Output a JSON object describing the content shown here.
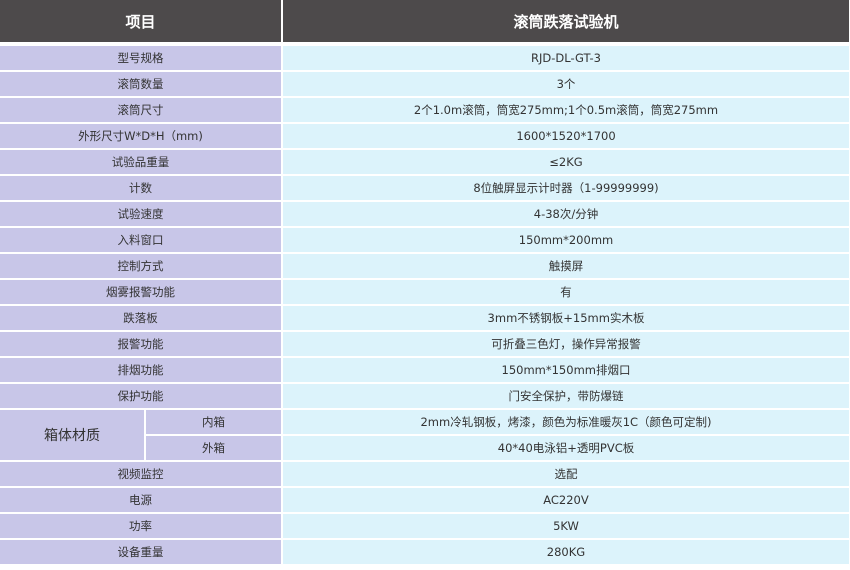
{
  "header": {
    "item": "项目",
    "product": "滚筒跌落试验机"
  },
  "rows": [
    {
      "label": "型号规格",
      "value": "RJD-DL-GT-3"
    },
    {
      "label": "滚筒数量",
      "value": "3个"
    },
    {
      "label": "滚筒尺寸",
      "value": "2个1.0m滚筒，筒宽275mm;1个0.5m滚筒，筒宽275mm"
    },
    {
      "label": "外形尺寸W*D*H（mm)",
      "value": "1600*1520*1700"
    },
    {
      "label": "试验品重量",
      "value": "≤2KG"
    },
    {
      "label": "计数",
      "value": "8位触屏显示计时器（1-99999999)"
    },
    {
      "label": "试验速度",
      "value": "4-38次/分钟"
    },
    {
      "label": "入料窗口",
      "value": "150mm*200mm"
    },
    {
      "label": "控制方式",
      "value": "触摸屏"
    },
    {
      "label": "烟雾报警功能",
      "value": "有"
    },
    {
      "label": "跌落板",
      "value": "3mm不锈钢板+15mm实木板"
    },
    {
      "label": "报警功能",
      "value": "可折叠三色灯，操作异常报警"
    },
    {
      "label": "排烟功能",
      "value": "150mm*150mm排烟口"
    },
    {
      "label": "保护功能",
      "value": "门安全保护，带防爆链"
    }
  ],
  "material": {
    "label": "箱体材质",
    "inner_label": "内箱",
    "inner_value": "2mm冷轧钢板，烤漆，颜色为标准暖灰1C（颜色可定制)",
    "outer_label": "外箱",
    "outer_value": "40*40电泳铝+透明PVC板"
  },
  "rows2": [
    {
      "label": "视频监控",
      "value": "选配"
    },
    {
      "label": "电源",
      "value": "AC220V"
    },
    {
      "label": "功率",
      "value": "5KW"
    },
    {
      "label": "设备重量",
      "value": "280KG"
    }
  ],
  "colors": {
    "header": "#4d4a4b",
    "label_bg": "#c8c6e8",
    "value_bg": "#dcf3fb"
  }
}
